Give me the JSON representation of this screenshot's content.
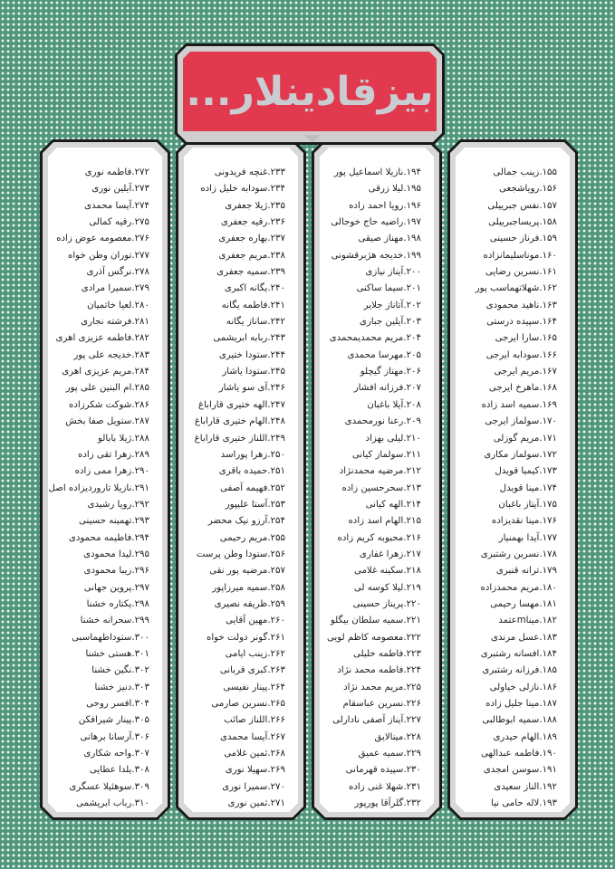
{
  "header": {
    "title": "بیزقادینلار...",
    "background_color": "#e13a4e",
    "title_color": "#c9ccd0"
  },
  "background_color": "#4f967b",
  "columns": [
    {
      "items": [
        "۱۵۵.زینب جمالی",
        "۱۵۶.رویاشجعی",
        "۱۵۷.نفس جبرییلی",
        "۱۵۸.پریساجبرییلی",
        "۱۵۹.فرناز حسینی",
        "۱۶۰.موناسلیمانزاده",
        "۱۶۱.نسرین رضایی",
        "۱۶۲.شهلاتهماسب پور",
        "۱۶۳.ناهید محمودی",
        "۱۶۴.سپیده درستی",
        "۱۶۵.سارا ایرجی",
        "۱۶۶.سودابه ایرجی",
        "۱۶۷.مریم ایرجی",
        "۱۶۸.ماهرخ ایرجی",
        "۱۶۹.سمیه اسد زاده",
        "۱۷۰.سولماز ایرجی",
        "۱۷۱.مریم گوزلی",
        "۱۷۲.سولماز مکاری",
        "۱۷۳.کیمیا قویدل",
        "۱۷۴.مینا قویدل",
        "۱۷۵.آیتاز باغبان",
        "۱۷۶.مینا نقدیزاده",
        "۱۷۷.آیدا بهمنیار",
        "۱۷۸.نسرین رشتبری",
        "۱۷۹.ترانه قنبری",
        "۱۸۰.مریم محمدزاده",
        "۱۸۱.مهسا رحیمی",
        "۱۸۲.میناmعتمد",
        "۱۸۳.عسل مرندی",
        "۱۸۴.افسانه رشتبری",
        "۱۸۵.فرزانه رشتبری",
        "۱۸۶.نازلی خیاولی",
        "۱۸۷.مینا جلیل زاده",
        "۱۸۸.سمیه ابوطالبی",
        "۱۸۹.الهام حیدری",
        "۱۹۰.فاطمه عبدالهی",
        "۱۹۱.سوسن امجدی",
        "۱۹۲.الناز سعیدی",
        "۱۹۳.لاله حامی نیا"
      ]
    },
    {
      "items": [
        "۱۹۴.نازیلا اسماعیل پور",
        "۱۹۵.لیلا زرقی",
        "۱۹۶.رویا احمد زاده",
        "۱۹۷.راضیه حاج خوجالی",
        "۱۹۸.مهناز صیقی",
        "۱۹۹.خدیجه هژبرقشونی",
        "۲۰۰.آیناز نیازی",
        "۲۰۱.سیما ساکنی",
        "۲۰۲.آتاناز جلایر",
        "۲۰۳.آیلین جباری",
        "۲۰۴.مریم محمدیمحمدی",
        "۲۰۵.مهرسا محمدی",
        "۲۰۶.مهتاز گیچلو",
        "۲۰۷.فرزانه افشار",
        "۲۰۸.آیلا باغبان",
        "۲۰۹.رعنا نورمحمدی",
        "۲۱۰.لیلی بهزاد",
        "۲۱۱.سولماز کیانی",
        "۲۱۲.مرضیه محمدنژاد",
        "۲۱۳.سحرحسین زاده",
        "۲۱۴.الهه کیانی",
        "۲۱۵.الهام اسد زاده",
        "۲۱۶.محبوبه کریم زاده",
        "۲۱۷.زهرا غفاری",
        "۲۱۸.سکینه غلامی",
        "۲۱۹.لیلا کوسه لی",
        "۲۲۰.پریناز حسینی",
        "۲۲۱.سمیه سلطان بیگلو",
        "۲۲۲.معصومه کاظم لویی",
        "۲۲۳.فاطمه خلیلی",
        "۲۲۴.فاطمه محمد نژاد",
        "۲۲۵.مریم محمد نژاد",
        "۲۲۶.نسرین عباسقام",
        "۲۲۷.آیناز آصفی نادارلی",
        "۲۲۸.مینالایق",
        "۲۲۹.سمیه عمیق",
        "۲۳۰.سپیده قهرمانی",
        "۲۳۱.شهلا غنی زاده",
        "۲۳۲.گلرآقا پورپور"
      ]
    },
    {
      "items": [
        "۲۳۳.غنچه فریدونی",
        "۲۳۴.سودابه خلیل زاده",
        "۲۳۵.ژیلا جعفری",
        "۲۳۶.رقیه جعفری",
        "۲۳۷.بهاره جعفری",
        "۲۳۸.مریم جعفری",
        "۲۳۹.سمیه جعفری",
        "۲۴۰.یگانه اکبری",
        "۲۴۱.فاطمه یگانه",
        "۲۴۲.ساناز یگانه",
        "۲۴۳.ربابه ابریشمی",
        "۲۴۴.ستودا ختیری",
        "۲۴۵.ستودا یاشار",
        "۲۴۶.آی سو یاشار",
        "۲۴۷.الهه ختیری قاراباغ",
        "۲۴۸.الهام ختیری قاراباغ",
        "۲۴۹.اللناز ختیری قاراباغ",
        "۲۵۰.زهرا پوراسد",
        "۲۵۱.حمیده باقری",
        "۲۵۲.فهیمه آصفی",
        "۲۵۳.آستا علیپور",
        "۲۵۴.آرزو نیک محضر",
        "۲۵۵.مریم رحیمی",
        "۲۵۶.ستودا وطن پرست",
        "۲۵۷.مرضیه پور نقی",
        "۲۵۸.سمیه میرزاپور",
        "۲۵۹.ظریفه نصیری",
        "۲۶۰.مهین آقایی",
        "۲۶۱.گونر دولت خواه",
        "۲۶۲.زینب ایامی",
        "۲۶۳.کبری قربانی",
        "۲۶۴.پینار نفیسی",
        "۲۶۵.نسرین صارمی",
        "۲۶۶.اللناز صائب",
        "۲۶۷.آیسا محمدی",
        "۲۶۸.ثمین غلامی",
        "۲۶۹.سهیلا نوری",
        "۲۷۰.سمیرا نوری",
        "۲۷۱.ثمین نوری"
      ]
    },
    {
      "items": [
        "۲۷۲.فاطمه نوری",
        "۲۷۳.آیلین نوری",
        "۲۷۴.آیسا محمدی",
        "۲۷۵.رقیه کمالی",
        "۲۷۶.معصومه عوض زاده",
        "۲۷۷.توران وطن خواه",
        "۲۷۸.نرگس آذری",
        "۲۷۹.سمیرا مرادی",
        "۲۸۰.لعیا خاتمیان",
        "۲۸۱.فرشته نجاری",
        "۲۸۲.فاطمه عزیزی اهری",
        "۲۸۳.خدیجه علی پور",
        "۲۸۴.مریم عزیزی اهری",
        "۲۸۵.ام البنین علی پور",
        "۲۸۶.شوکت شکرزاده",
        "۲۸۷.ستویل صفا بخش",
        "۲۸۸.ژیلا بابالو",
        "۲۸۹.زهرا تقی زاده",
        "۲۹۰.زهرا ممی زاده",
        "۲۹۱.نازیلا تاروردیزاده اصل",
        "۲۹۲.رویا رشیدی",
        "۲۹۳.تهمینه حسینی",
        "۲۹۴.فاطیمه محمودی",
        "۲۹۵.لیدا محمودی",
        "۲۹۶.زیبا محمودی",
        "۲۹۷.پروین جهانی",
        "۲۹۸.یکتاره خشنا",
        "۲۹۹.سحرانه خشنا",
        "۳۰۰.ستوداطهماسبی",
        "۳۰۱.هستی خشنا",
        "۳۰۲.نگین خشنا",
        "۳۰۳.دنیز خشنا",
        "۳۰۴.افسر روحی",
        "۳۰۵.پینار شیرافکن",
        "۳۰۶.آرسانا برهانی",
        "۳۰۷.واحه شکاری",
        "۳۰۸.یلدا عطایی",
        "۳۰۹.سوهئیلا عسگری",
        "۳۱۰.رباب ابریشمی"
      ]
    }
  ]
}
